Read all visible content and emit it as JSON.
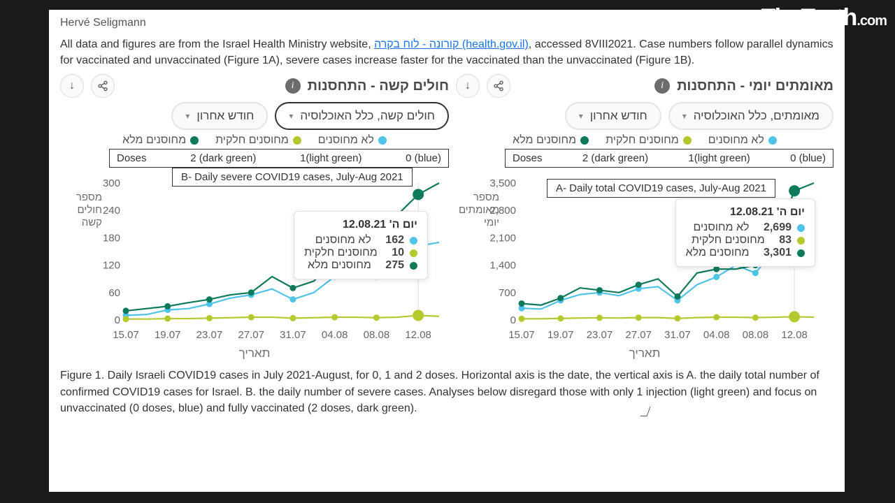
{
  "watermark": {
    "main": "TimTruth",
    "suffix": ".com"
  },
  "author": "Hervé Seligmann",
  "intro_pre": "All data and figures are from the Israel Health Ministry website, ",
  "intro_link": "קורונה - לוח בקרה (health.gov.il)",
  "intro_post": ", accessed 8VIII2021. Case numbers follow parallel dynamics for vaccinated and unvaccinated (Figure 1A), severe cases increase faster for the vaccinated than the unvaccinated (Figure 1B).",
  "colors": {
    "unvaccinated": "#4fc3e8",
    "partial": "#b5c92f",
    "full": "#0d7a5b",
    "axis": "#888888",
    "grid": "#ffffff",
    "text": "#666666"
  },
  "x_labels": [
    "15.07",
    "19.07",
    "23.07",
    "27.07",
    "31.07",
    "04.08",
    "08.08",
    "12.08"
  ],
  "x_axis_title": "תאריך",
  "legend": {
    "unv": "לא מחוסנים",
    "par": "מחוסנים חלקית",
    "ful": "מחוסנים מלא"
  },
  "dose_header": {
    "c0": "Doses",
    "c1": "2 (dark green)",
    "c2": "1(light green)",
    "c3": "0 (blue)"
  },
  "chartB": {
    "title": "חולים קשה - התחסנות",
    "pill_main": "חולים קשה, כלל האוכלוסיה",
    "pill_range": "חודש אחרון",
    "box_title": "B- Daily severe COVID19 cases, July-Aug 2021",
    "ylabel": "מספר\nחולים\nקשה",
    "ymax": 300,
    "ytick": 60,
    "series": {
      "unv": [
        10,
        12,
        22,
        25,
        35,
        48,
        55,
        68,
        45,
        60,
        95,
        120,
        95,
        120,
        162,
        170
      ],
      "par": [
        2,
        2,
        3,
        3,
        4,
        5,
        6,
        6,
        4,
        5,
        6,
        6,
        5,
        6,
        10,
        8
      ],
      "ful": [
        20,
        25,
        30,
        38,
        45,
        55,
        60,
        95,
        70,
        85,
        130,
        180,
        150,
        230,
        275,
        300
      ]
    },
    "tooltip": {
      "date": "יום ה' 12.08.21",
      "unv_val": "162",
      "unv_txt": "לא מחוסנים",
      "par_val": "10",
      "par_txt": "מחוסנים חלקית",
      "ful_val": "275",
      "ful_txt": "מחוסנים מלא"
    }
  },
  "chartA": {
    "title": "מאומתים יומי - התחסנות",
    "pill_main": "מאומתים, כלל האוכלוסיה",
    "pill_range": "חודש אחרון",
    "box_title": "A- Daily total COVID19 cases, July-Aug 2021",
    "ylabel": "מספר\nמאומתים\nיומי",
    "ymax": 3500,
    "ytick": 700,
    "series": {
      "unv": [
        300,
        280,
        500,
        650,
        700,
        620,
        800,
        850,
        500,
        900,
        1100,
        1400,
        1200,
        1800,
        2699,
        2600
      ],
      "par": [
        30,
        30,
        40,
        50,
        55,
        50,
        60,
        60,
        40,
        60,
        70,
        70,
        60,
        70,
        83,
        70
      ],
      "ful": [
        420,
        380,
        560,
        820,
        760,
        700,
        900,
        1050,
        600,
        1200,
        1300,
        1300,
        1400,
        2000,
        3301,
        3500
      ]
    },
    "tooltip": {
      "date": "יום ה' 12.08.21",
      "unv_val": "2,699",
      "unv_txt": "לא מחוסנים",
      "par_val": "83",
      "par_txt": "מחוסנים חלקית",
      "ful_val": "3,301",
      "ful_txt": "מחוסנים מלא"
    }
  },
  "caption": "Figure 1. Daily Israeli COVID19 cases in July 2021-August, for 0, 1 and 2 doses. Horizontal axis is the date, the vertical axis is A. the daily total number of confirmed COVID19 cases for Israel. B. the daily number of severe cases. Analyses below disregard those with only 1 injection (light green) and focus on unvaccinated (0 doses, blue) and fully vaccinated (2 doses, dark green)."
}
